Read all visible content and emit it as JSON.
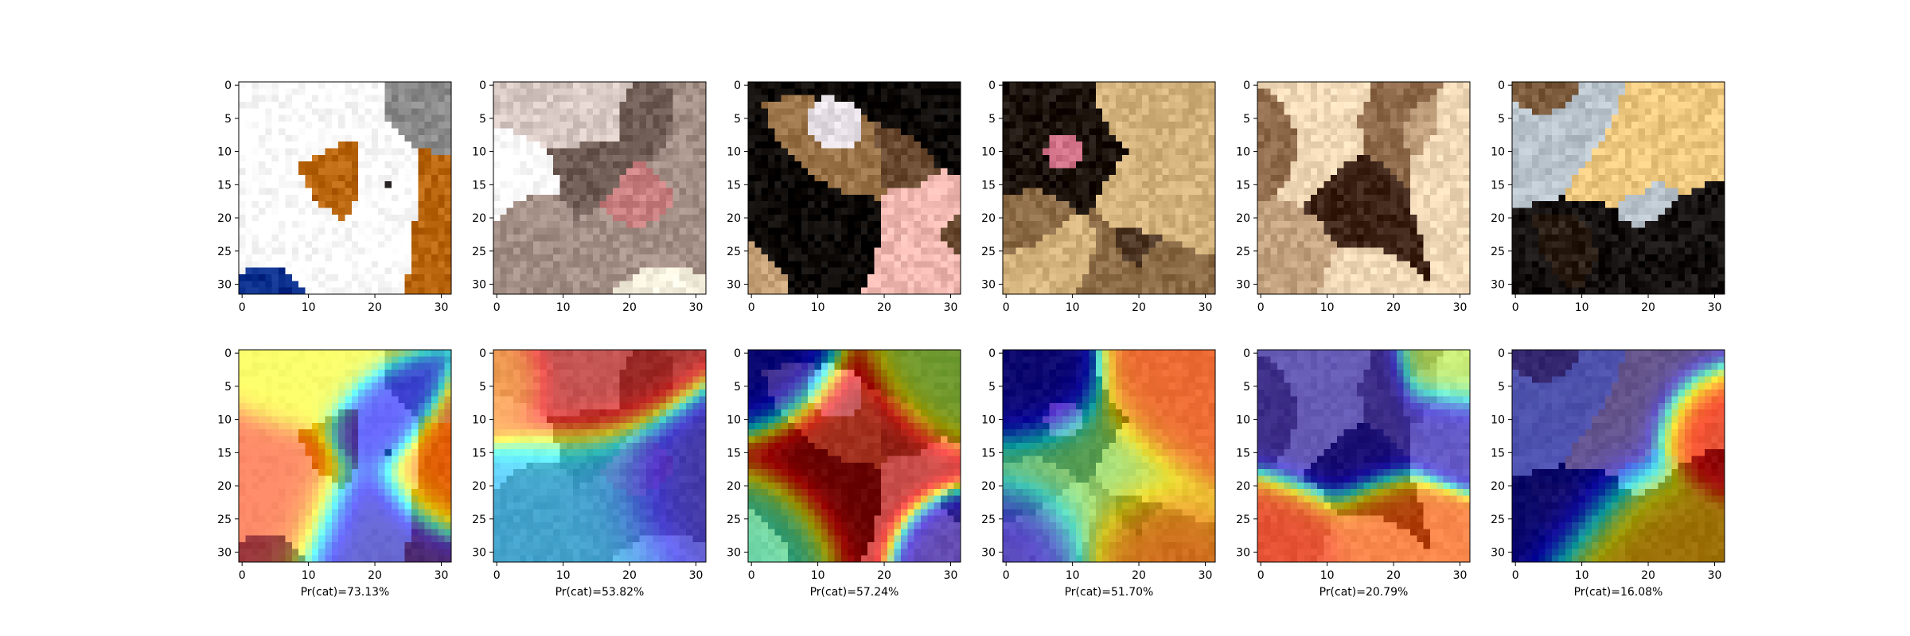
{
  "chart_data": {
    "type": "heatmap",
    "layout": "2 rows x 6 columns of image panels",
    "panel_pixel_grid": [
      32,
      32
    ],
    "x_ticks": [
      0,
      10,
      20,
      30
    ],
    "y_ticks": [
      0,
      5,
      10,
      15,
      20,
      25,
      30
    ],
    "xlim": [
      -0.5,
      31.5
    ],
    "ylim": [
      31.5,
      -0.5
    ],
    "rows": [
      {
        "name": "input images",
        "kind": "photo"
      },
      {
        "name": "heatmap overlay",
        "kind": "heatmap",
        "colormap": "jet"
      }
    ],
    "columns": [
      {
        "caption": "Pr(cat)=73.13%",
        "probability_percent": 73.13,
        "image_palette": [
          "#b8650e",
          "#2f2a2a",
          "#8a8a8a",
          "#ffffff",
          "#1c50b8",
          "#0a2f8c"
        ],
        "heat_centers": [
          {
            "x": 5,
            "y": 22,
            "v": 0.82,
            "s": 5
          },
          {
            "x": 29,
            "y": 19,
            "v": 0.8,
            "s": 3.5
          },
          {
            "x": 10,
            "y": 3,
            "v": 0.62,
            "s": 4
          },
          {
            "x": 20,
            "y": 28,
            "v": 0.05,
            "s": 5
          },
          {
            "x": 20,
            "y": 11,
            "v": 0.12,
            "s": 3
          }
        ]
      },
      {
        "caption": "Pr(cat)=53.82%",
        "probability_percent": 53.82,
        "image_palette": [
          "#f6f0df",
          "#d8c9c4",
          "#a48f86",
          "#ffffff",
          "#c97f7f",
          "#6f5c55"
        ],
        "heat_centers": [
          {
            "x": 14,
            "y": 3,
            "v": 0.95,
            "s": 5
          },
          {
            "x": 2,
            "y": 4,
            "v": 0.75,
            "s": 3
          },
          {
            "x": 27,
            "y": 22,
            "v": 0.05,
            "s": 5
          },
          {
            "x": 16,
            "y": 24,
            "v": 0.3,
            "s": 6
          }
        ]
      },
      {
        "caption": "Pr(cat)=57.24%",
        "probability_percent": 57.24,
        "image_palette": [
          "#0c0805",
          "#9a7348",
          "#c8a37a",
          "#e7dfe6",
          "#6b4c33",
          "#f0b8b0"
        ],
        "heat_centers": [
          {
            "x": 14,
            "y": 16,
            "v": 0.96,
            "s": 6
          },
          {
            "x": 28,
            "y": 3,
            "v": 0.55,
            "s": 4
          },
          {
            "x": 3,
            "y": 3,
            "v": 0.05,
            "s": 4
          },
          {
            "x": 29,
            "y": 29,
            "v": 0.05,
            "s": 3
          },
          {
            "x": 3,
            "y": 27,
            "v": 0.42,
            "s": 4
          }
        ]
      },
      {
        "caption": "Pr(cat)=51.70%",
        "probability_percent": 51.7,
        "image_palette": [
          "#1c130d",
          "#8b6a46",
          "#d4b27c",
          "#ffffff",
          "#d4748a",
          "#4e3825"
        ],
        "heat_centers": [
          {
            "x": 26,
            "y": 6,
            "v": 0.82,
            "s": 5
          },
          {
            "x": 5,
            "y": 5,
            "v": 0.05,
            "s": 4
          },
          {
            "x": 4,
            "y": 28,
            "v": 0.08,
            "s": 4
          },
          {
            "x": 20,
            "y": 28,
            "v": 0.78,
            "s": 4
          },
          {
            "x": 12,
            "y": 20,
            "v": 0.5,
            "s": 6
          }
        ]
      },
      {
        "caption": "Pr(cat)=20.79%",
        "probability_percent": 20.79,
        "image_palette": [
          "#2b1108",
          "#b23b1b",
          "#8e6a4a",
          "#f1d8b6",
          "#c3a27f",
          "#3b2215"
        ],
        "heat_centers": [
          {
            "x": 12,
            "y": 11,
            "v": 0.05,
            "s": 5
          },
          {
            "x": 28,
            "y": 11,
            "v": 0.08,
            "s": 3
          },
          {
            "x": 4,
            "y": 29,
            "v": 0.85,
            "s": 4
          },
          {
            "x": 19,
            "y": 28,
            "v": 0.8,
            "s": 4
          },
          {
            "x": 29,
            "y": 3,
            "v": 0.55,
            "s": 3
          }
        ]
      },
      {
        "caption": "Pr(cat)=16.08%",
        "probability_percent": 16.08,
        "image_palette": [
          "#fdf3d2",
          "#eec87e",
          "#2a1d14",
          "#151010",
          "#b8c2cb",
          "#7a5a3a"
        ],
        "heat_centers": [
          {
            "x": 29,
            "y": 12,
            "v": 0.92,
            "s": 3.5
          },
          {
            "x": 12,
            "y": 5,
            "v": 0.02,
            "s": 7
          },
          {
            "x": 8,
            "y": 20,
            "v": 0.03,
            "s": 5
          },
          {
            "x": 18,
            "y": 28,
            "v": 0.7,
            "s": 5
          }
        ]
      }
    ]
  }
}
